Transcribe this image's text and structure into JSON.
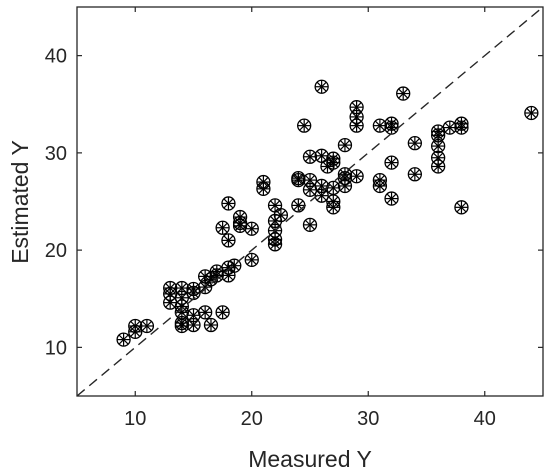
{
  "chart_data": {
    "type": "scatter",
    "title": "",
    "xlabel": "Measured Y",
    "ylabel": "Estimated Y",
    "xlim": [
      5,
      45
    ],
    "ylim": [
      5,
      45
    ],
    "xticks": [
      10,
      20,
      30,
      40
    ],
    "yticks": [
      10,
      20,
      30,
      40
    ],
    "xtick_labels": [
      "10",
      "20",
      "30",
      "40"
    ],
    "ytick_labels": [
      "10",
      "20",
      "30",
      "40"
    ],
    "grid": false,
    "legend": "none",
    "reference_line": {
      "style": "dashed",
      "from": [
        5,
        5
      ],
      "to": [
        45,
        45
      ]
    },
    "marker": "circle with asterisk",
    "series": [
      {
        "color": "#000000",
        "points": [
          [
            9,
            10.8
          ],
          [
            10,
            11.6
          ],
          [
            10,
            12.2
          ],
          [
            11,
            12.2
          ],
          [
            13,
            14.6
          ],
          [
            13,
            15.5
          ],
          [
            13,
            16.1
          ],
          [
            14,
            12.2
          ],
          [
            14,
            12.5
          ],
          [
            14,
            13.6
          ],
          [
            14,
            14.2
          ],
          [
            14,
            15.1
          ],
          [
            14,
            16.1
          ],
          [
            15,
            12.3
          ],
          [
            15,
            13.3
          ],
          [
            15,
            15.6
          ],
          [
            15,
            16
          ],
          [
            16,
            13.6
          ],
          [
            16,
            16.2
          ],
          [
            16,
            17.3
          ],
          [
            16.5,
            12.3
          ],
          [
            16.5,
            17
          ],
          [
            17,
            17.4
          ],
          [
            17,
            17.8
          ],
          [
            17.5,
            13.6
          ],
          [
            17.5,
            22.3
          ],
          [
            18,
            17.4
          ],
          [
            18,
            18.2
          ],
          [
            18,
            21
          ],
          [
            18,
            24.8
          ],
          [
            18.5,
            18.4
          ],
          [
            19,
            22.5
          ],
          [
            19,
            22.8
          ],
          [
            19,
            23.4
          ],
          [
            20,
            19
          ],
          [
            20,
            22.2
          ],
          [
            21,
            26.3
          ],
          [
            21,
            27
          ],
          [
            22,
            20.6
          ],
          [
            22,
            21.1
          ],
          [
            22,
            22
          ],
          [
            22,
            23
          ],
          [
            22,
            24.6
          ],
          [
            22.5,
            23.6
          ],
          [
            24,
            24.6
          ],
          [
            24,
            27.2
          ],
          [
            24,
            27.4
          ],
          [
            24.5,
            32.8
          ],
          [
            25,
            22.6
          ],
          [
            25,
            26.2
          ],
          [
            25,
            27.2
          ],
          [
            25,
            29.6
          ],
          [
            26,
            25.6
          ],
          [
            26,
            26.6
          ],
          [
            26,
            29.7
          ],
          [
            26,
            36.8
          ],
          [
            26.5,
            28.6
          ],
          [
            27,
            24.4
          ],
          [
            27,
            25
          ],
          [
            27,
            26.4
          ],
          [
            27,
            29
          ],
          [
            27,
            29.4
          ],
          [
            28,
            26.6
          ],
          [
            28,
            27.4
          ],
          [
            28,
            27.8
          ],
          [
            28,
            30.8
          ],
          [
            29,
            27.6
          ],
          [
            29,
            32.8
          ],
          [
            29,
            33.7
          ],
          [
            29,
            34.7
          ],
          [
            31,
            26.6
          ],
          [
            31,
            27.2
          ],
          [
            31,
            32.8
          ],
          [
            32,
            25.3
          ],
          [
            32,
            29
          ],
          [
            32,
            32.6
          ],
          [
            32,
            33
          ],
          [
            33,
            36.1
          ],
          [
            34,
            27.8
          ],
          [
            34,
            31
          ],
          [
            36,
            28.6
          ],
          [
            36,
            29.5
          ],
          [
            36,
            30.7
          ],
          [
            36,
            31.8
          ],
          [
            36,
            32.2
          ],
          [
            37,
            32.6
          ],
          [
            38,
            24.4
          ],
          [
            38,
            32.6
          ],
          [
            38,
            33
          ],
          [
            44,
            34.1
          ]
        ]
      }
    ]
  }
}
